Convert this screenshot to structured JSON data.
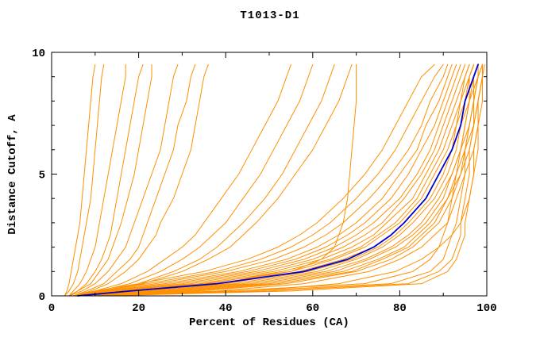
{
  "chart_data": {
    "type": "line",
    "title": "T1013-D1",
    "xlabel": "Percent of Residues (CA)",
    "ylabel": "Distance Cutoff, A",
    "xlim": [
      0,
      100
    ],
    "ylim": [
      0,
      10
    ],
    "x_major_ticks": [
      0,
      20,
      40,
      60,
      80,
      100
    ],
    "x_minor_step": 10,
    "y_major_ticks": [
      0,
      5,
      10
    ],
    "y_minor_step": 1,
    "grid": "off",
    "legend": "none",
    "colors": {
      "orange": "#ff9000",
      "blue": "#0000cd",
      "axis": "#000000",
      "background": "#ffffff"
    },
    "y_grid": [
      0,
      0.2,
      0.5,
      1,
      1.5,
      2,
      2.5,
      3,
      4,
      5,
      6,
      7,
      8,
      9,
      9.5
    ],
    "series_orange": [
      [
        3,
        3.5,
        4,
        4.5,
        5,
        5.5,
        6,
        6.5,
        7,
        7.5,
        8,
        8.5,
        9,
        9.5,
        10
      ],
      [
        3,
        4,
        5,
        6,
        6.5,
        7,
        7.5,
        8,
        9,
        9.5,
        10,
        10.5,
        11,
        11.5,
        12
      ],
      [
        4,
        5,
        6.5,
        8,
        9,
        10,
        10.5,
        11,
        12,
        13,
        14,
        15,
        16,
        17,
        17
      ],
      [
        4,
        6,
        8,
        10,
        11.5,
        12.5,
        13.5,
        14,
        15,
        16,
        17,
        18,
        19,
        20,
        21
      ],
      [
        4,
        6,
        9,
        11,
        13,
        14,
        15,
        16,
        17.5,
        19,
        20,
        21,
        22,
        23,
        23
      ],
      [
        4,
        7,
        10,
        13,
        15,
        17,
        18,
        19,
        21,
        23,
        25,
        26,
        27,
        28,
        29
      ],
      [
        5,
        8,
        12,
        15,
        18,
        20,
        21,
        22,
        24,
        26,
        28,
        29,
        31,
        32,
        33
      ],
      [
        5,
        9,
        13,
        17,
        20,
        22,
        24,
        25,
        28,
        30,
        32,
        33,
        34,
        35,
        36
      ],
      [
        5,
        10,
        16,
        22,
        26,
        30,
        33,
        35,
        39,
        43,
        46,
        49,
        52,
        54,
        55
      ],
      [
        5,
        11,
        18,
        25,
        30,
        34,
        37,
        40,
        44,
        48,
        51,
        54,
        57,
        59,
        60
      ],
      [
        6,
        12,
        20,
        28,
        34,
        38,
        41,
        44,
        49,
        53,
        56,
        59,
        62,
        64,
        65
      ],
      [
        5,
        12,
        21,
        30,
        36,
        41,
        44,
        47,
        52,
        56,
        60,
        63,
        66,
        68,
        69
      ],
      [
        5,
        15,
        35,
        55,
        62,
        65,
        66,
        67,
        68,
        68.5,
        69,
        69.5,
        70,
        70,
        70
      ],
      [
        5,
        10,
        20,
        35,
        45,
        52,
        57,
        61,
        67,
        72,
        76,
        79,
        82,
        85,
        88
      ],
      [
        5,
        11,
        22,
        38,
        48,
        55,
        60,
        64,
        70,
        75,
        79,
        82,
        85,
        88,
        90
      ],
      [
        5,
        12,
        24,
        40,
        51,
        58,
        63,
        67,
        73,
        78,
        82,
        85,
        87,
        90,
        91
      ],
      [
        5,
        13,
        26,
        43,
        54,
        61,
        66,
        70,
        76,
        80,
        84,
        86,
        89,
        91,
        92
      ],
      [
        5,
        14,
        28,
        45,
        56,
        63,
        68,
        72,
        78,
        82,
        85,
        88,
        90,
        92,
        93
      ],
      [
        6,
        15,
        30,
        47,
        58,
        65,
        70,
        74,
        80,
        84,
        87,
        89,
        91,
        93,
        94
      ],
      [
        6,
        16,
        32,
        49,
        60,
        67,
        72,
        76,
        81,
        85,
        88,
        90,
        92,
        94,
        95
      ],
      [
        6,
        17,
        34,
        51,
        62,
        69,
        74,
        77,
        83,
        86,
        89,
        91,
        93,
        95,
        96
      ],
      [
        6,
        18,
        36,
        53,
        64,
        71,
        75,
        79,
        84,
        87,
        90,
        92,
        94,
        95,
        96
      ],
      [
        6,
        19,
        38,
        55,
        65,
        72,
        76,
        80,
        85,
        88,
        91,
        93,
        94,
        96,
        97
      ],
      [
        7,
        20,
        40,
        57,
        67,
        74,
        78,
        81,
        86,
        89,
        92,
        93,
        95,
        96,
        97
      ],
      [
        7,
        22,
        42,
        59,
        69,
        75,
        79,
        82,
        87,
        90,
        92,
        94,
        95,
        97,
        98
      ],
      [
        7,
        24,
        44,
        61,
        70,
        76,
        80,
        83,
        88,
        91,
        93,
        94,
        96,
        97,
        98
      ],
      [
        7,
        26,
        46,
        63,
        72,
        78,
        82,
        85,
        89,
        92,
        94,
        95,
        96,
        98,
        98
      ],
      [
        8,
        28,
        48,
        65,
        73,
        79,
        83,
        86,
        90,
        92,
        94,
        96,
        97,
        98,
        99
      ],
      [
        8,
        30,
        50,
        67,
        75,
        81,
        84,
        87,
        91,
        93,
        95,
        96,
        97,
        98,
        99
      ],
      [
        8,
        32,
        52,
        69,
        76,
        82,
        85,
        88,
        91,
        94,
        95,
        97,
        98,
        99,
        99
      ],
      [
        9,
        34,
        54,
        70,
        78,
        83,
        86,
        89,
        92,
        94,
        96,
        97,
        98,
        99,
        99
      ],
      [
        9,
        40,
        72,
        83,
        87,
        89,
        90,
        91,
        92,
        93,
        94,
        95,
        96,
        96,
        97
      ],
      [
        10,
        45,
        78,
        87,
        90,
        91,
        92,
        93,
        94,
        95,
        95,
        96,
        97,
        97,
        98
      ],
      [
        11,
        50,
        82,
        89,
        92,
        93,
        94,
        94,
        95,
        96,
        96,
        97,
        97,
        98,
        98
      ],
      [
        12,
        55,
        85,
        91,
        93,
        94,
        95,
        95,
        96,
        97,
        97,
        98,
        98,
        99,
        99
      ],
      [
        10,
        38,
        58,
        73,
        80,
        85,
        88,
        91,
        93,
        95,
        97,
        98,
        98,
        99,
        99
      ],
      [
        13,
        46,
        66,
        79,
        85,
        89,
        92,
        94,
        96,
        97,
        98,
        98,
        99,
        99,
        99.5
      ]
    ],
    "series_blue": [
      6,
      18,
      38,
      58,
      68,
      74,
      78,
      81,
      86,
      89,
      92,
      94,
      95,
      97,
      98
    ]
  }
}
